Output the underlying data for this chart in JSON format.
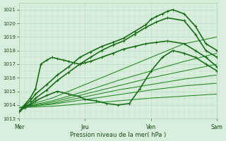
{
  "xlabel": "Pression niveau de la mer( hPa )",
  "ylim": [
    1013,
    1021.5
  ],
  "xlim": [
    0,
    3.0
  ],
  "xtick_labels": [
    "Mer",
    "Jeu",
    "Ven",
    "Sam"
  ],
  "xtick_pos": [
    0,
    1,
    2,
    3
  ],
  "ytick_vals": [
    1013,
    1014,
    1015,
    1016,
    1017,
    1018,
    1019,
    1020,
    1021
  ],
  "bg_color": "#d8eedc",
  "grid_color": "#b8d8bc",
  "lines": [
    {
      "x": [
        0.0,
        0.08,
        0.17,
        0.25,
        0.42,
        0.58,
        0.75,
        0.92,
        1.08,
        1.25,
        1.42,
        1.58,
        1.75,
        1.92,
        2.0,
        2.08,
        2.17,
        2.25,
        2.33,
        2.5,
        2.67,
        2.83,
        3.0
      ],
      "y": [
        1013.5,
        1013.9,
        1014.3,
        1014.8,
        1015.5,
        1016.2,
        1016.8,
        1017.5,
        1017.9,
        1018.3,
        1018.6,
        1018.9,
        1019.4,
        1019.9,
        1020.3,
        1020.5,
        1020.7,
        1020.9,
        1021.0,
        1020.7,
        1019.8,
        1018.5,
        1018.0
      ],
      "marker": "+",
      "lw": 1.2,
      "color": "#1a6e1a",
      "ms": 3.5,
      "zorder": 10
    },
    {
      "x": [
        0.0,
        0.08,
        0.17,
        0.25,
        0.42,
        0.58,
        0.75,
        0.92,
        1.08,
        1.25,
        1.42,
        1.58,
        1.75,
        1.92,
        2.08,
        2.25,
        2.5,
        2.67,
        2.83,
        3.0
      ],
      "y": [
        1013.5,
        1013.8,
        1014.1,
        1014.5,
        1015.1,
        1015.8,
        1016.4,
        1017.0,
        1017.5,
        1018.0,
        1018.4,
        1018.7,
        1019.2,
        1019.7,
        1020.1,
        1020.4,
        1020.2,
        1019.2,
        1018.0,
        1017.5
      ],
      "marker": "+",
      "lw": 1.2,
      "color": "#1a6e1a",
      "ms": 3.5,
      "zorder": 10
    },
    {
      "x": [
        0.0,
        0.08,
        0.17,
        0.25,
        0.33,
        0.42,
        0.5,
        0.58,
        0.67,
        0.75,
        0.83,
        0.92,
        1.0,
        1.08,
        1.25,
        1.42,
        1.58,
        1.75,
        1.92,
        2.08,
        2.25,
        2.5,
        2.67,
        2.83,
        3.0
      ],
      "y": [
        1013.5,
        1014.0,
        1014.5,
        1015.2,
        1017.0,
        1017.3,
        1017.5,
        1017.4,
        1017.3,
        1017.2,
        1017.1,
        1017.0,
        1017.1,
        1017.2,
        1017.5,
        1017.8,
        1018.1,
        1018.3,
        1018.5,
        1018.6,
        1018.7,
        1018.5,
        1018.0,
        1017.5,
        1016.8
      ],
      "marker": "+",
      "lw": 1.2,
      "color": "#1a6e1a",
      "ms": 3.5,
      "zorder": 10
    },
    {
      "x": [
        0.0,
        0.08,
        0.17,
        0.25,
        0.42,
        0.58,
        0.75,
        0.92,
        1.0,
        1.17,
        1.33,
        1.5,
        1.67,
        1.83,
        2.0,
        2.17,
        2.33,
        2.5,
        2.67,
        2.83,
        3.0
      ],
      "y": [
        1013.5,
        1013.8,
        1014.0,
        1014.3,
        1014.7,
        1015.0,
        1014.8,
        1014.6,
        1014.4,
        1014.3,
        1014.1,
        1014.0,
        1014.1,
        1015.2,
        1016.5,
        1017.5,
        1018.0,
        1017.8,
        1017.5,
        1017.0,
        1016.5
      ],
      "marker": "+",
      "lw": 1.2,
      "color": "#1a6e1a",
      "ms": 3.5,
      "zorder": 10
    },
    {
      "x": [
        0.0,
        0.5,
        1.0,
        1.5,
        2.0,
        2.5,
        3.0
      ],
      "y": [
        1013.8,
        1014.5,
        1015.5,
        1016.5,
        1017.5,
        1018.5,
        1019.0
      ],
      "marker": null,
      "lw": 0.8,
      "color": "#2d8c2d",
      "ms": 0,
      "zorder": 5
    },
    {
      "x": [
        0.0,
        0.5,
        1.0,
        1.5,
        2.0,
        2.5,
        3.0
      ],
      "y": [
        1013.8,
        1014.3,
        1015.0,
        1015.8,
        1016.5,
        1017.2,
        1017.8
      ],
      "marker": null,
      "lw": 0.8,
      "color": "#2d8c2d",
      "ms": 0,
      "zorder": 5
    },
    {
      "x": [
        0.0,
        0.5,
        1.0,
        1.5,
        2.0,
        2.5,
        3.0
      ],
      "y": [
        1013.8,
        1014.2,
        1014.8,
        1015.4,
        1016.0,
        1016.5,
        1017.0
      ],
      "marker": null,
      "lw": 0.8,
      "color": "#2d8c2d",
      "ms": 0,
      "zorder": 5
    },
    {
      "x": [
        0.0,
        0.5,
        1.0,
        1.5,
        2.0,
        2.5,
        3.0
      ],
      "y": [
        1013.8,
        1014.1,
        1014.6,
        1015.1,
        1015.5,
        1015.9,
        1016.2
      ],
      "marker": null,
      "lw": 0.8,
      "color": "#2d8c2d",
      "ms": 0,
      "zorder": 5
    },
    {
      "x": [
        0.0,
        0.5,
        1.0,
        1.5,
        2.0,
        2.5,
        3.0
      ],
      "y": [
        1013.8,
        1014.05,
        1014.4,
        1014.75,
        1015.1,
        1015.4,
        1015.6
      ],
      "marker": null,
      "lw": 0.8,
      "color": "#2d8c2d",
      "ms": 0,
      "zorder": 5
    },
    {
      "x": [
        0.0,
        0.5,
        1.0,
        1.5,
        2.0,
        2.5,
        3.0
      ],
      "y": [
        1013.8,
        1013.9,
        1014.1,
        1014.3,
        1014.5,
        1014.65,
        1014.8
      ],
      "marker": null,
      "lw": 0.8,
      "color": "#2d8c2d",
      "ms": 0,
      "zorder": 5
    }
  ]
}
